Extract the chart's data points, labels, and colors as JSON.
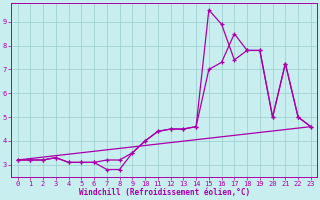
{
  "xlabel": "Windchill (Refroidissement éolien,°C)",
  "background_color": "#c8eef0",
  "line_color": "#aa00aa",
  "grid_color": "#99cccc",
  "xlim": [
    -0.5,
    23.5
  ],
  "ylim": [
    2.5,
    9.8
  ],
  "xticks": [
    0,
    1,
    2,
    3,
    4,
    5,
    6,
    7,
    8,
    9,
    10,
    11,
    12,
    13,
    14,
    15,
    16,
    17,
    18,
    19,
    20,
    21,
    22,
    23
  ],
  "yticks": [
    3,
    4,
    5,
    6,
    7,
    8,
    9
  ],
  "line1_x": [
    0,
    1,
    2,
    3,
    4,
    5,
    6,
    7,
    8,
    9,
    10,
    11,
    12,
    13,
    14,
    15,
    16,
    17,
    18,
    19,
    20,
    21,
    22,
    23
  ],
  "line1_y": [
    3.2,
    3.2,
    3.2,
    3.3,
    3.1,
    3.1,
    3.1,
    2.8,
    2.8,
    3.5,
    4.0,
    4.4,
    4.5,
    4.5,
    4.6,
    9.5,
    8.9,
    7.4,
    7.8,
    7.8,
    5.0,
    7.25,
    5.0,
    4.6
  ],
  "line2_x": [
    0,
    1,
    2,
    3,
    4,
    5,
    6,
    7,
    8,
    9,
    10,
    11,
    12,
    13,
    14,
    15,
    16,
    17,
    18,
    19,
    20,
    21,
    22,
    23
  ],
  "line2_y": [
    3.2,
    3.2,
    3.2,
    3.3,
    3.1,
    3.1,
    3.1,
    3.2,
    3.2,
    3.5,
    4.0,
    4.4,
    4.5,
    4.5,
    4.6,
    7.0,
    7.3,
    8.5,
    7.8,
    7.8,
    5.0,
    7.25,
    5.0,
    4.6
  ],
  "line3_x": [
    0,
    23
  ],
  "line3_y": [
    3.2,
    4.6
  ],
  "xlabel_fontsize": 5.5,
  "tick_fontsize": 5.0
}
